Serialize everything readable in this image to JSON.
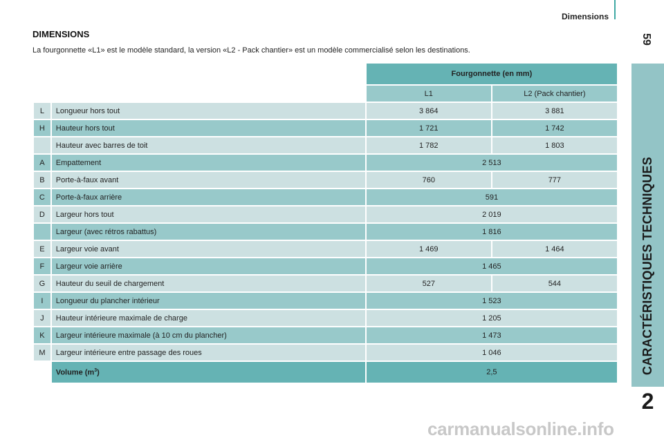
{
  "header": {
    "section": "Dimensions",
    "page_number": "59"
  },
  "sidebar": {
    "chapter_title": "CARACTÉRISTIQUES TECHNIQUES",
    "chapter_number": "2"
  },
  "title": "DIMENSIONS",
  "intro": "La fourgonnette «L1» est le modèle standard, la version «L2 - Pack chantier» est un modèle commercialisé selon les destinations.",
  "table": {
    "group_header": "Fourgonnette (en mm)",
    "columns": [
      "L1",
      "L2 (Pack chantier)"
    ],
    "rows": [
      {
        "code": "L",
        "label": "Longueur hors tout",
        "l1": "3 864",
        "l2": "3 881"
      },
      {
        "code": "H",
        "label": "Hauteur hors tout",
        "l1": "1 721",
        "l2": "1 742"
      },
      {
        "code": "",
        "label": "Hauteur avec barres de toit",
        "l1": "1 782",
        "l2": "1 803"
      },
      {
        "code": "A",
        "label": "Empattement",
        "both": "2 513"
      },
      {
        "code": "B",
        "label": "Porte-à-faux avant",
        "l1": "760",
        "l2": "777"
      },
      {
        "code": "C",
        "label": "Porte-à-faux arrière",
        "both": "591"
      },
      {
        "code": "D",
        "label": "Largeur hors tout",
        "both": "2 019"
      },
      {
        "code": "",
        "label": "Largeur (avec rétros rabattus)",
        "both": "1 816"
      },
      {
        "code": "E",
        "label": "Largeur voie avant",
        "l1": "1 469",
        "l2": "1 464"
      },
      {
        "code": "F",
        "label": "Largeur voie arrière",
        "both": "1 465"
      },
      {
        "code": "G",
        "label": "Hauteur du seuil de chargement",
        "l1": "527",
        "l2": "544"
      },
      {
        "code": "I",
        "label": "Longueur du plancher intérieur",
        "both": "1 523"
      },
      {
        "code": "J",
        "label": "Hauteur intérieure maximale de charge",
        "both": "1 205"
      },
      {
        "code": "K",
        "label": "Largeur intérieure maximale (à 10 cm du plancher)",
        "both": "1 473"
      },
      {
        "code": "M",
        "label": "Largeur intérieure entre passage des roues",
        "both": "1 046"
      }
    ],
    "volume": {
      "label": "Volume (m",
      "sup": "3",
      "label_end": ")",
      "value": "2,5"
    }
  },
  "watermark": "carmanualsonline.info",
  "colors": {
    "accent_dark": "#65b3b4",
    "row_dark": "#98c9ca",
    "row_light": "#cce0e1",
    "sidebar": "#93c4c6"
  }
}
